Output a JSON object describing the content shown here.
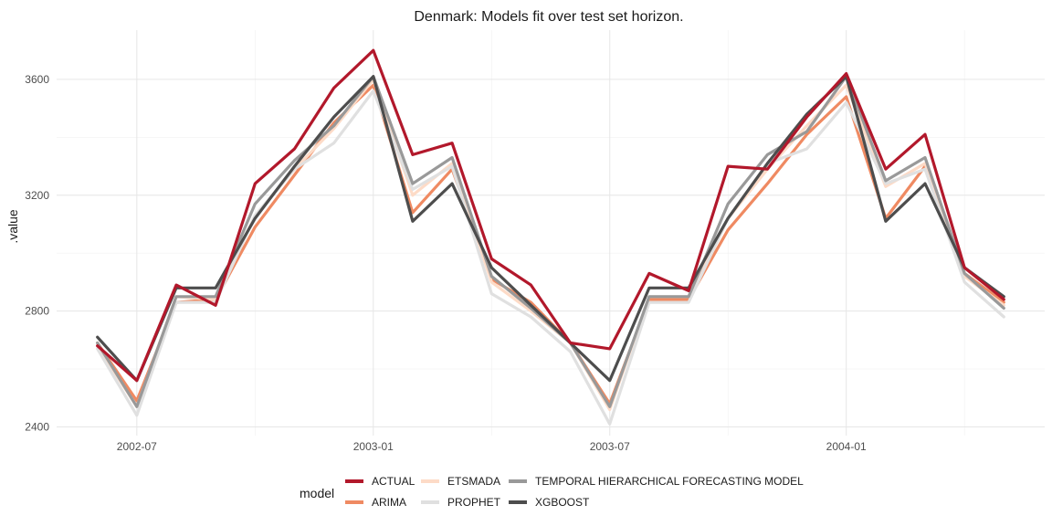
{
  "chart_data": {
    "type": "line",
    "title": "Denmark: Models fit over test set horizon.",
    "xlabel": "",
    "ylabel": ".value",
    "x": [
      "2002-06",
      "2002-07",
      "2002-08",
      "2002-09",
      "2002-10",
      "2002-11",
      "2002-12",
      "2003-01",
      "2003-02",
      "2003-03",
      "2003-04",
      "2003-05",
      "2003-06",
      "2003-07",
      "2003-08",
      "2003-09",
      "2003-10",
      "2003-11",
      "2003-12",
      "2004-01",
      "2004-02",
      "2004-03",
      "2004-04",
      "2004-05"
    ],
    "x_ticks": [
      "2002-07",
      "2003-01",
      "2003-07",
      "2004-01"
    ],
    "y_ticks": [
      2400,
      2800,
      3200,
      3600
    ],
    "ylim": [
      2370,
      3770
    ],
    "grid": true,
    "legend_title": "model",
    "legend_position": "bottom",
    "series": [
      {
        "name": "ACTUAL",
        "color": "#b2182b",
        "values": [
          2680,
          2560,
          2890,
          2820,
          3240,
          3360,
          3570,
          3700,
          3340,
          3380,
          2980,
          2890,
          2690,
          2670,
          2930,
          2870,
          3300,
          3290,
          3470,
          3620,
          3290,
          3410,
          2950,
          2840
        ]
      },
      {
        "name": "ARIMA",
        "color": "#ef8a62",
        "values": [
          2690,
          2490,
          2830,
          2840,
          3090,
          3270,
          3450,
          3580,
          3140,
          3290,
          2910,
          2830,
          2690,
          2480,
          2840,
          2840,
          3080,
          3240,
          3410,
          3540,
          3120,
          3300,
          2930,
          2830
        ]
      },
      {
        "name": "ETSMADA",
        "color": "#fddbc7",
        "values": [
          2680,
          2470,
          2850,
          2840,
          3130,
          3290,
          3430,
          3600,
          3200,
          3310,
          2900,
          2800,
          2690,
          2460,
          2850,
          2850,
          3120,
          3290,
          3440,
          3580,
          3230,
          3310,
          2920,
          2820
        ]
      },
      {
        "name": "PROPHET",
        "color": "#e0e0e0",
        "values": [
          2670,
          2440,
          2830,
          2830,
          3130,
          3290,
          3380,
          3560,
          3220,
          3300,
          2860,
          2780,
          2660,
          2410,
          2830,
          2830,
          3120,
          3310,
          3360,
          3520,
          3240,
          3290,
          2900,
          2780
        ]
      },
      {
        "name": "TEMPORAL HIERARCHICAL FORECASTING MODEL",
        "color": "#999999",
        "values": [
          2690,
          2470,
          2850,
          2850,
          3170,
          3320,
          3440,
          3610,
          3240,
          3330,
          2920,
          2810,
          2690,
          2470,
          2850,
          2850,
          3170,
          3340,
          3420,
          3610,
          3250,
          3330,
          2930,
          2810
        ]
      },
      {
        "name": "XGBOOST",
        "color": "#4d4d4d",
        "values": [
          2710,
          2560,
          2880,
          2880,
          3120,
          3300,
          3470,
          3610,
          3110,
          3240,
          2950,
          2820,
          2690,
          2560,
          2880,
          2880,
          3120,
          3310,
          3480,
          3610,
          3110,
          3240,
          2950,
          2850
        ]
      }
    ]
  }
}
